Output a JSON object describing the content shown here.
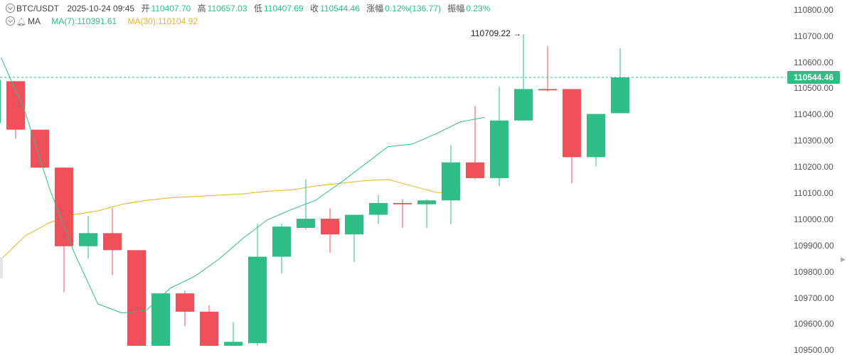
{
  "header": {
    "symbol": "BTC/USDT",
    "datetime": "2025-10-24 09:45",
    "open_label": "开",
    "open": "110407.70",
    "high_label": "高",
    "high": "110657.03",
    "low_label": "低",
    "low": "110407.69",
    "close_label": "收",
    "close": "110544.46",
    "change_label": "涨幅",
    "change": "0.12%(136.77)",
    "amplitude_label": "振幅",
    "amplitude": "0.23%"
  },
  "ma_row": {
    "label": "MA",
    "ma7": "MA(7):110391.61",
    "ma30": "MA(30):110104.92"
  },
  "colors": {
    "up": "#2ebd85",
    "down": "#f0505a",
    "ma7": "#2ebd85",
    "ma30": "#e6b422"
  },
  "chart_data": {
    "type": "candlestick",
    "ylim": [
      109520,
      110840
    ],
    "y_ticks": [
      "110800.00",
      "110700.00",
      "110600.00",
      "110500.00",
      "110400.00",
      "110300.00",
      "110200.00",
      "110100.00",
      "110000.00",
      "109900.00",
      "109800.00",
      "109700.00",
      "109600.00",
      "109500.00"
    ],
    "last_price": "110544.46",
    "high_annotation": "110709.22",
    "candles": [
      {
        "o": 110370,
        "h": 110545,
        "l": 110330,
        "c": 110535
      },
      {
        "o": 110530,
        "h": 110530,
        "l": 110310,
        "c": 110345
      },
      {
        "o": 110345,
        "h": 110345,
        "l": 110200,
        "c": 110200
      },
      {
        "o": 110200,
        "h": 110200,
        "l": 109725,
        "c": 109900
      },
      {
        "o": 109900,
        "h": 110015,
        "l": 109852,
        "c": 109950
      },
      {
        "o": 109950,
        "h": 110045,
        "l": 109790,
        "c": 109885
      },
      {
        "o": 109885,
        "h": 109885,
        "l": 109500,
        "c": 109500
      },
      {
        "o": 109510,
        "h": 109720,
        "l": 109500,
        "c": 109720
      },
      {
        "o": 109720,
        "h": 109730,
        "l": 109595,
        "c": 109650
      },
      {
        "o": 109650,
        "h": 109675,
        "l": 109500,
        "c": 109500
      },
      {
        "o": 109510,
        "h": 109610,
        "l": 109500,
        "c": 109535
      },
      {
        "o": 109530,
        "h": 109985,
        "l": 109520,
        "c": 109860
      },
      {
        "o": 109860,
        "h": 109985,
        "l": 109795,
        "c": 109975
      },
      {
        "o": 109970,
        "h": 110155,
        "l": 109965,
        "c": 110005
      },
      {
        "o": 110005,
        "h": 110045,
        "l": 109875,
        "c": 109945
      },
      {
        "o": 109945,
        "h": 110020,
        "l": 109840,
        "c": 110020
      },
      {
        "o": 110020,
        "h": 110095,
        "l": 109985,
        "c": 110065
      },
      {
        "o": 110065,
        "h": 110080,
        "l": 109970,
        "c": 110060
      },
      {
        "o": 110060,
        "h": 110080,
        "l": 109970,
        "c": 110075
      },
      {
        "o": 110075,
        "h": 110285,
        "l": 109985,
        "c": 110220
      },
      {
        "o": 110220,
        "h": 110435,
        "l": 110155,
        "c": 110160
      },
      {
        "o": 110160,
        "h": 110510,
        "l": 110130,
        "c": 110380
      },
      {
        "o": 110380,
        "h": 110709.22,
        "l": 110380,
        "c": 110500
      },
      {
        "o": 110500,
        "h": 110665,
        "l": 110490,
        "c": 110495
      },
      {
        "o": 110500,
        "h": 110500,
        "l": 110140,
        "c": 110240
      },
      {
        "o": 110240,
        "h": 110405,
        "l": 110205,
        "c": 110405
      },
      {
        "o": 110407.7,
        "h": 110657.03,
        "l": 110407.69,
        "c": 110544.46
      }
    ],
    "ma7": [
      110620,
      110410,
      110120,
      109880,
      109680,
      109645,
      109655,
      109740,
      109785,
      109850,
      109930,
      110000,
      110040,
      110075,
      110140,
      110210,
      110280,
      110290,
      110330,
      110375,
      110392
    ],
    "ma30": [
      109850,
      109940,
      109990,
      110020,
      110035,
      110060,
      110075,
      110085,
      110090,
      110095,
      110100,
      110110,
      110115,
      110130,
      110140,
      110150,
      110155,
      110130,
      110105,
      110104.92
    ]
  }
}
